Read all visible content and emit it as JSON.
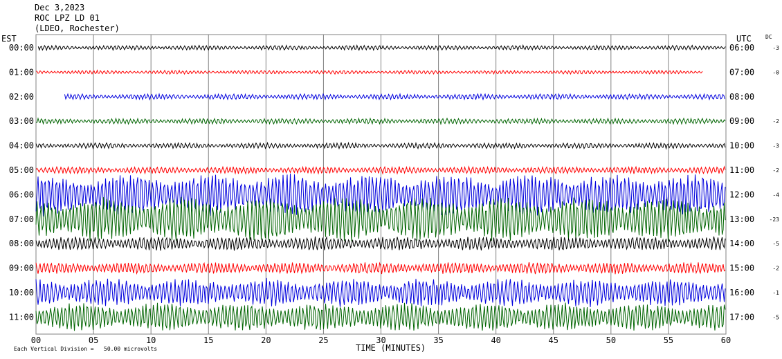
{
  "header": {
    "date": "Dec 3,2023",
    "station": "ROC LPZ LD 01",
    "network": "(LDEO, Rochester)"
  },
  "axes": {
    "left_title": "EST",
    "right_title": "UTC",
    "dc_title": "DC",
    "xlabel": "TIME (MINUTES)"
  },
  "footnote": "Each Vertical Division =   50.00 microvolts",
  "colors": {
    "black": "#000000",
    "red": "#ff0000",
    "blue": "#0000dd",
    "green": "#006400",
    "grid": "#808080"
  },
  "chart_data": {
    "type": "line",
    "title": "Dec 3,2023 ROC LPZ LD 01 (LDEO, Rochester)",
    "xlabel": "TIME (MINUTES)",
    "ylabel": "",
    "xlim": [
      0,
      60
    ],
    "x_ticks": [
      "00",
      "05",
      "10",
      "15",
      "20",
      "25",
      "30",
      "35",
      "40",
      "45",
      "50",
      "55",
      "60"
    ],
    "grid": true,
    "series": [
      {
        "est": "00:00",
        "utc": "06:00",
        "dc": "-3",
        "color": "black",
        "amplitude_divisions": 0.1,
        "start_min": 0.2,
        "end_min": 60
      },
      {
        "est": "01:00",
        "utc": "07:00",
        "dc": "-0",
        "color": "red",
        "amplitude_divisions": 0.08,
        "start_min": 0.0,
        "end_min": 58
      },
      {
        "est": "02:00",
        "utc": "08:00",
        "dc": "",
        "color": "blue",
        "amplitude_divisions": 0.12,
        "start_min": 2.5,
        "end_min": 60
      },
      {
        "est": "03:00",
        "utc": "09:00",
        "dc": "-2",
        "color": "green",
        "amplitude_divisions": 0.12,
        "start_min": 0.0,
        "end_min": 60
      },
      {
        "est": "04:00",
        "utc": "10:00",
        "dc": "-3",
        "color": "black",
        "amplitude_divisions": 0.12,
        "start_min": 0.0,
        "end_min": 60
      },
      {
        "est": "05:00",
        "utc": "11:00",
        "dc": "-2",
        "color": "red",
        "amplitude_divisions": 0.15,
        "start_min": 0.0,
        "end_min": 60
      },
      {
        "est": "06:00",
        "utc": "12:00",
        "dc": "-4",
        "color": "blue",
        "amplitude_divisions": 0.9,
        "start_min": 0.0,
        "end_min": 60
      },
      {
        "est": "07:00",
        "utc": "13:00",
        "dc": "-23",
        "color": "green",
        "amplitude_divisions": 0.95,
        "start_min": 0.0,
        "end_min": 60
      },
      {
        "est": "08:00",
        "utc": "14:00",
        "dc": "-5",
        "color": "black",
        "amplitude_divisions": 0.3,
        "start_min": 0.0,
        "end_min": 60
      },
      {
        "est": "09:00",
        "utc": "15:00",
        "dc": "-2",
        "color": "red",
        "amplitude_divisions": 0.25,
        "start_min": 0.0,
        "end_min": 60
      },
      {
        "est": "10:00",
        "utc": "16:00",
        "dc": "-1",
        "color": "blue",
        "amplitude_divisions": 0.6,
        "start_min": 0.0,
        "end_min": 60
      },
      {
        "est": "11:00",
        "utc": "17:00",
        "dc": "-5",
        "color": "green",
        "amplitude_divisions": 0.6,
        "start_min": 0.0,
        "end_min": 60
      }
    ]
  }
}
